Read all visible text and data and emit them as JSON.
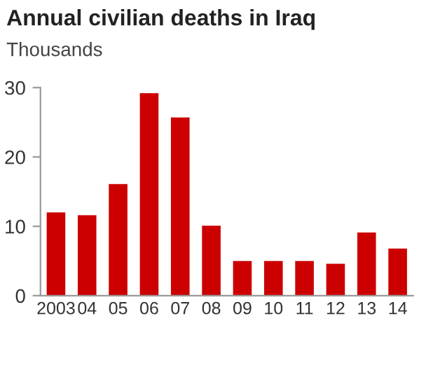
{
  "chart_data": {
    "type": "bar",
    "title": "Annual civilian deaths in Iraq",
    "subtitle": "Thousands",
    "categories": [
      "2003",
      "04",
      "05",
      "06",
      "07",
      "08",
      "09",
      "10",
      "11",
      "12",
      "13",
      "14"
    ],
    "values": [
      12.0,
      11.6,
      16.1,
      29.2,
      25.7,
      10.1,
      5.0,
      5.0,
      5.0,
      4.6,
      9.1,
      6.8
    ],
    "color": "#cc0000",
    "ylim": [
      0,
      30
    ],
    "yticks": [
      0,
      10,
      20,
      30
    ],
    "grid": false
  }
}
